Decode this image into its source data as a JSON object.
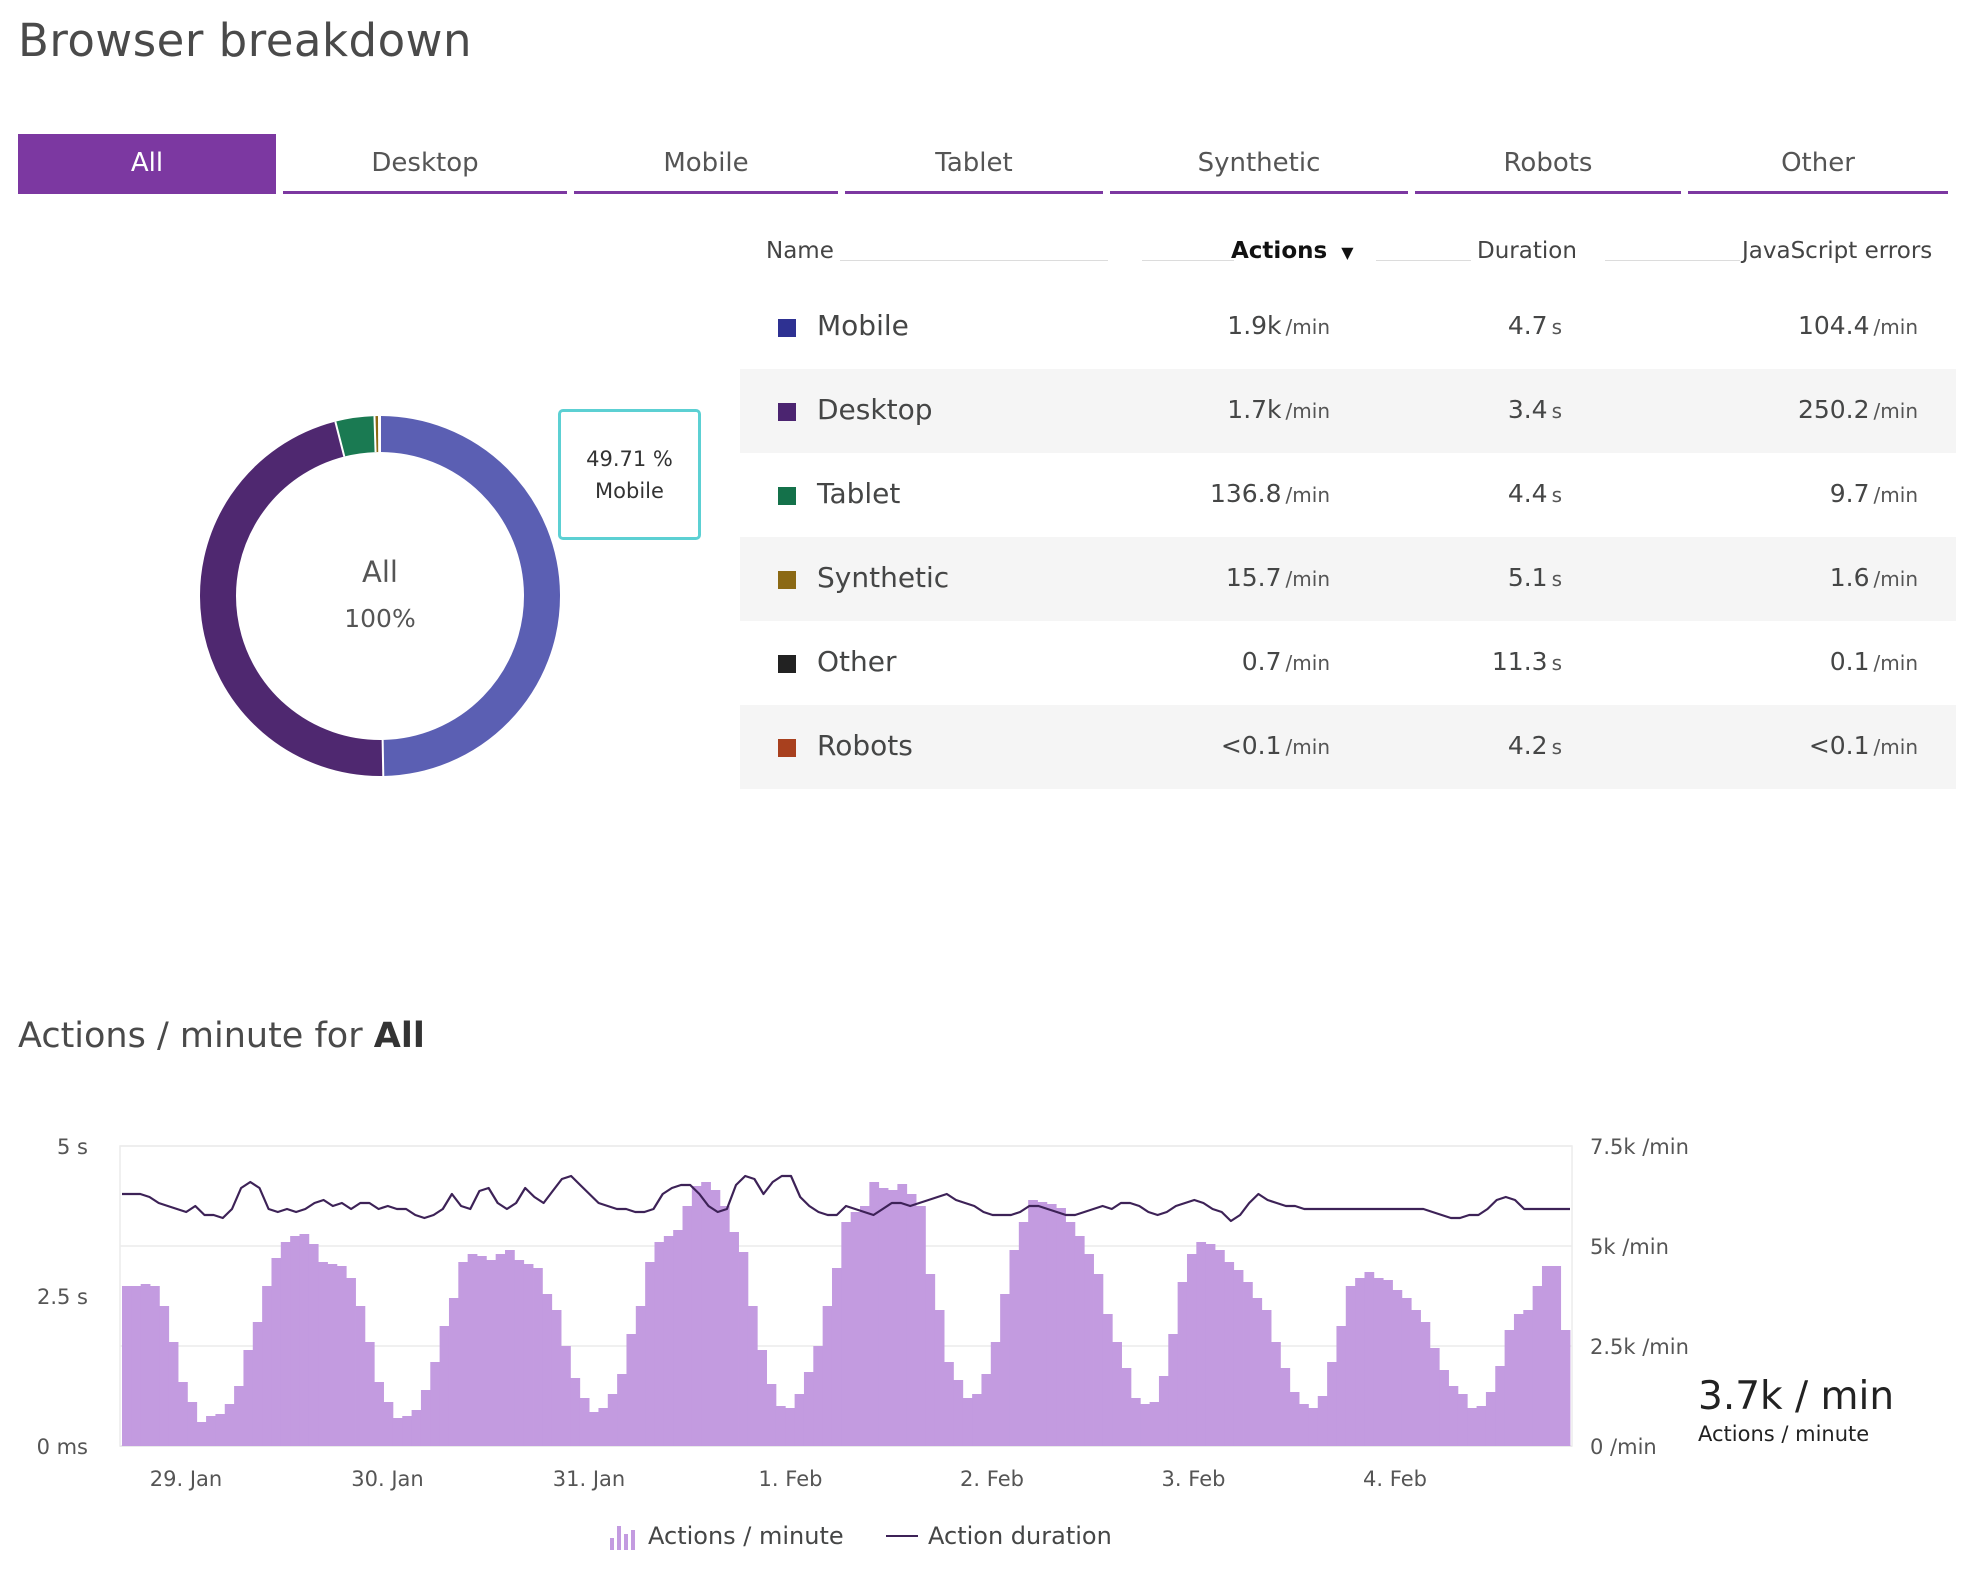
{
  "title": "Browser breakdown",
  "tabs": [
    {
      "label": "All",
      "active": true
    },
    {
      "label": "Desktop",
      "active": false
    },
    {
      "label": "Mobile",
      "active": false
    },
    {
      "label": "Tablet",
      "active": false
    },
    {
      "label": "Synthetic",
      "active": false
    },
    {
      "label": "Robots",
      "active": false
    },
    {
      "label": "Other",
      "active": false
    }
  ],
  "donut": {
    "center_name": "All",
    "center_pct": "100%",
    "tooltip": {
      "pct": "49.71 %",
      "name": "Mobile"
    },
    "slices": [
      {
        "name": "Mobile",
        "percent": 49.71,
        "color": "#5b5fb3"
      },
      {
        "name": "Desktop",
        "percent": 46.3,
        "color": "#4f2870"
      },
      {
        "name": "Tablet",
        "percent": 3.5,
        "color": "#1a7a52"
      },
      {
        "name": "Synthetic",
        "percent": 0.4,
        "color": "#8b6914"
      },
      {
        "name": "Other",
        "percent": 0.05,
        "color": "#2a2a2a"
      },
      {
        "name": "Robots",
        "percent": 0.04,
        "color": "#b04422"
      }
    ]
  },
  "table": {
    "headers": {
      "name": "Name",
      "actions": "Actions",
      "sort_indicator": "▼",
      "duration": "Duration",
      "errors": "JavaScript errors"
    },
    "rows": [
      {
        "name": "Mobile",
        "color": "#2e3192",
        "actions": "1.9k",
        "actions_unit": "/min",
        "duration": "4.7",
        "duration_unit": "s",
        "errors": "104.4",
        "errors_unit": "/min"
      },
      {
        "name": "Desktop",
        "color": "#4b2470",
        "actions": "1.7k",
        "actions_unit": "/min",
        "duration": "3.4",
        "duration_unit": "s",
        "errors": "250.2",
        "errors_unit": "/min"
      },
      {
        "name": "Tablet",
        "color": "#14714a",
        "actions": "136.8",
        "actions_unit": "/min",
        "duration": "4.4",
        "duration_unit": "s",
        "errors": "9.7",
        "errors_unit": "/min"
      },
      {
        "name": "Synthetic",
        "color": "#8b6914",
        "actions": "15.7",
        "actions_unit": "/min",
        "duration": "5.1",
        "duration_unit": "s",
        "errors": "1.6",
        "errors_unit": "/min"
      },
      {
        "name": "Other",
        "color": "#222222",
        "actions": "0.7",
        "actions_unit": "/min",
        "duration": "11.3",
        "duration_unit": "s",
        "errors": "0.1",
        "errors_unit": "/min"
      },
      {
        "name": "Robots",
        "color": "#a8401e",
        "actions": "<0.1",
        "actions_unit": "/min",
        "duration": "4.2",
        "duration_unit": "s",
        "errors": "<0.1",
        "errors_unit": "/min"
      }
    ]
  },
  "chart_heading": {
    "prefix": "Actions / minute for",
    "selection": "All"
  },
  "current": {
    "value": "3.7k / min",
    "label": "Actions / minute"
  },
  "legend": {
    "bars": "Actions / minute",
    "line": "Action duration"
  },
  "chart_data": {
    "type": "bar",
    "left_axis": {
      "ticks": [
        "0 ms",
        "2.5 s",
        "5 s"
      ],
      "range": [
        0,
        5
      ]
    },
    "right_axis": {
      "ticks": [
        "0 /min",
        "2.5k /min",
        "5k /min",
        "7.5k /min"
      ],
      "range": [
        0,
        7500
      ]
    },
    "x_ticks": [
      "29. Jan",
      "30. Jan",
      "31. Jan",
      "1. Feb",
      "2. Feb",
      "3. Feb",
      "4. Feb"
    ],
    "grid": true,
    "legend_position": "bottom",
    "series": [
      {
        "name": "Actions / minute",
        "kind": "bar",
        "axis": "right",
        "color": "#c39be0",
        "values": [
          4000,
          4000,
          4050,
          4000,
          3500,
          2600,
          1600,
          1100,
          600,
          750,
          800,
          1050,
          1500,
          2400,
          3100,
          4000,
          4700,
          5100,
          5250,
          5300,
          5050,
          4600,
          4550,
          4500,
          4200,
          3500,
          2600,
          1600,
          1100,
          700,
          750,
          900,
          1400,
          2100,
          3000,
          3700,
          4600,
          4800,
          4750,
          4650,
          4800,
          4900,
          4650,
          4550,
          4450,
          3800,
          3400,
          2500,
          1700,
          1200,
          850,
          950,
          1300,
          1800,
          2800,
          3500,
          4600,
          5100,
          5250,
          5400,
          6000,
          6500,
          6600,
          6400,
          6000,
          5350,
          4850,
          3500,
          2400,
          1550,
          1000,
          950,
          1300,
          1850,
          2500,
          3500,
          4450,
          5600,
          5850,
          6000,
          6600,
          6450,
          6400,
          6550,
          6300,
          6000,
          4300,
          3400,
          2100,
          1650,
          1200,
          1300,
          1800,
          2600,
          3800,
          4900,
          5600,
          6150,
          6100,
          6050,
          5950,
          5600,
          5250,
          4800,
          4300,
          3300,
          2600,
          1950,
          1200,
          1050,
          1100,
          1750,
          2800,
          4100,
          4800,
          5100,
          5050,
          4900,
          4600,
          4400,
          4100,
          3700,
          3400,
          2600,
          1950,
          1350,
          1050,
          950,
          1250,
          2100,
          3000,
          4000,
          4200,
          4350,
          4200,
          4150,
          3900,
          3700,
          3400,
          3100,
          2450,
          1900,
          1500,
          1300,
          950,
          1000,
          1350,
          2000,
          2900,
          3300,
          3400,
          4000,
          4500,
          4500,
          2900
        ]
      },
      {
        "name": "Action duration",
        "kind": "line",
        "axis": "left",
        "color": "#3d2257",
        "values": [
          4.2,
          4.2,
          4.2,
          4.15,
          4.05,
          4.0,
          3.95,
          3.9,
          4.0,
          3.85,
          3.85,
          3.8,
          3.95,
          4.3,
          4.4,
          4.3,
          3.95,
          3.9,
          3.95,
          3.9,
          3.95,
          4.05,
          4.1,
          4.0,
          4.05,
          3.95,
          4.05,
          4.05,
          3.95,
          4.0,
          3.95,
          3.95,
          3.85,
          3.8,
          3.85,
          3.95,
          4.2,
          4.0,
          3.95,
          4.25,
          4.3,
          4.05,
          3.95,
          4.05,
          4.3,
          4.15,
          4.05,
          4.25,
          4.45,
          4.5,
          4.35,
          4.2,
          4.05,
          4.0,
          3.95,
          3.95,
          3.9,
          3.9,
          3.95,
          4.2,
          4.3,
          4.35,
          4.35,
          4.2,
          4.0,
          3.9,
          3.95,
          4.35,
          4.5,
          4.45,
          4.2,
          4.4,
          4.5,
          4.5,
          4.15,
          4.0,
          3.9,
          3.85,
          3.85,
          4.0,
          3.95,
          3.9,
          3.85,
          3.95,
          4.05,
          4.05,
          4.0,
          4.05,
          4.1,
          4.15,
          4.2,
          4.1,
          4.05,
          4.0,
          3.9,
          3.85,
          3.85,
          3.85,
          3.9,
          4.0,
          4.0,
          3.95,
          3.9,
          3.85,
          3.85,
          3.9,
          3.95,
          4.0,
          3.95,
          4.05,
          4.05,
          4.0,
          3.9,
          3.85,
          3.9,
          4.0,
          4.05,
          4.1,
          4.05,
          3.95,
          3.9,
          3.75,
          3.85,
          4.05,
          4.2,
          4.1,
          4.05,
          4.0,
          4.0,
          3.95,
          3.95,
          3.95,
          3.95,
          3.95,
          3.95,
          3.95,
          3.95,
          3.95,
          3.95,
          3.95,
          3.95,
          3.95,
          3.95,
          3.9,
          3.85,
          3.8,
          3.8,
          3.85,
          3.85,
          3.95,
          4.1,
          4.15,
          4.1,
          3.95,
          3.95,
          3.95,
          3.95,
          3.95,
          3.95
        ]
      }
    ]
  }
}
